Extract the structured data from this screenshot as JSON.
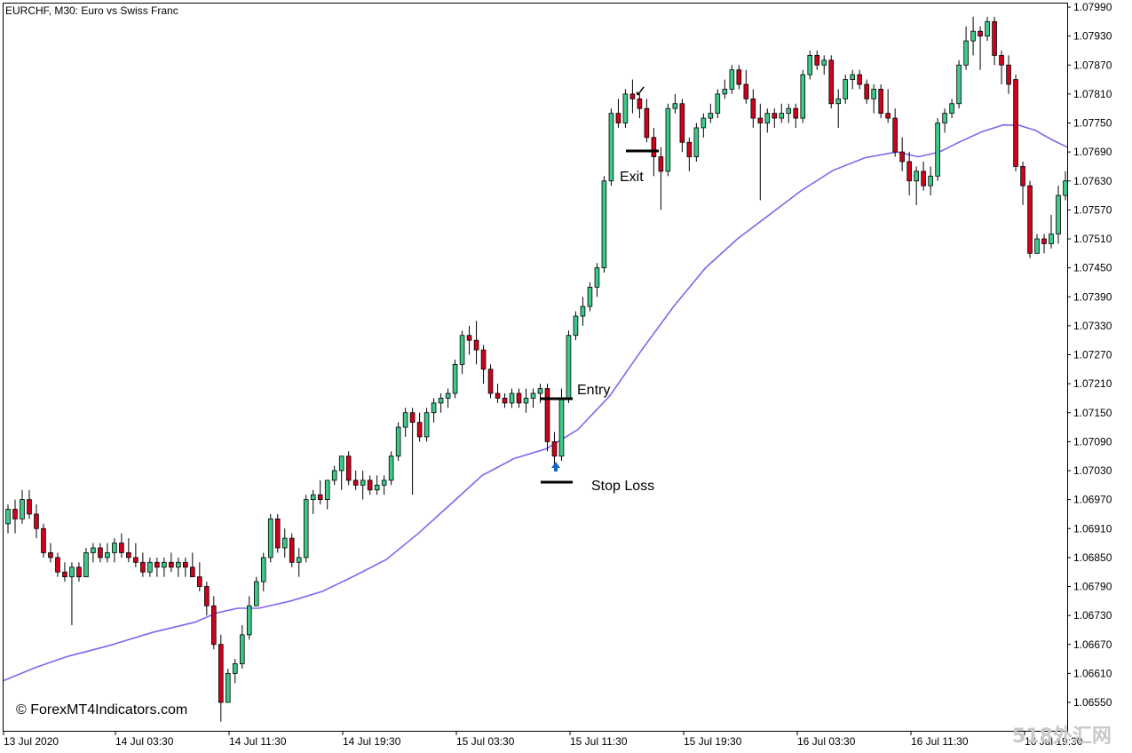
{
  "chart_data": {
    "type": "candlestick",
    "title": "EURCHF, M30:  Euro vs Swiss Franc",
    "ylim": [
      1.0649,
      1.0802
    ],
    "y_ticks": [
      "1.07990",
      "1.07930",
      "1.07870",
      "1.07810",
      "1.07750",
      "1.07690",
      "1.07630",
      "1.07570",
      "1.07510",
      "1.07450",
      "1.07390",
      "1.07330",
      "1.07270",
      "1.07210",
      "1.07150",
      "1.07090",
      "1.07030",
      "1.06970",
      "1.06910",
      "1.06850",
      "1.06790",
      "1.06730",
      "1.06670",
      "1.06610",
      "1.06550"
    ],
    "x_ticks": [
      "13 Jul 2020",
      "14 Jul 03:30",
      "14 Jul 11:30",
      "14 Jul 19:30",
      "15 Jul 03:30",
      "15 Jul 11:30",
      "15 Jul 19:30",
      "16 Jul 03:30",
      "16 Jul 11:30",
      "16 Jul 19:30"
    ],
    "grid": false,
    "bull_color": "#3ec98a",
    "bear_color": "#d0021b",
    "ma_color": "#7b68ee",
    "candles": [
      [
        1.0692,
        1.0696,
        1.069,
        1.0695
      ],
      [
        1.0695,
        1.0697,
        1.069,
        1.0693
      ],
      [
        1.0693,
        1.0699,
        1.0692,
        1.0697
      ],
      [
        1.0697,
        1.0699,
        1.0693,
        1.0694
      ],
      [
        1.0694,
        1.0696,
        1.0689,
        1.0691
      ],
      [
        1.0691,
        1.0692,
        1.0685,
        1.0686
      ],
      [
        1.0686,
        1.0688,
        1.0684,
        1.0685
      ],
      [
        1.0685,
        1.0686,
        1.0681,
        1.0682
      ],
      [
        1.0682,
        1.0684,
        1.068,
        1.0681
      ],
      [
        1.0681,
        1.0684,
        1.0671,
        1.0683
      ],
      [
        1.0683,
        1.0684,
        1.068,
        1.0681
      ],
      [
        1.0681,
        1.0687,
        1.0681,
        1.0686
      ],
      [
        1.0686,
        1.0688,
        1.0684,
        1.0687
      ],
      [
        1.0687,
        1.0688,
        1.0684,
        1.0685
      ],
      [
        1.0685,
        1.0688,
        1.0684,
        1.0686
      ],
      [
        1.0686,
        1.0689,
        1.0684,
        1.0688
      ],
      [
        1.0688,
        1.069,
        1.0685,
        1.0686
      ],
      [
        1.0686,
        1.0689,
        1.0684,
        1.0685
      ],
      [
        1.0685,
        1.0688,
        1.0683,
        1.0684
      ],
      [
        1.0684,
        1.0686,
        1.0681,
        1.0682
      ],
      [
        1.0682,
        1.0685,
        1.0681,
        1.0684
      ],
      [
        1.0684,
        1.0685,
        1.0681,
        1.0683
      ],
      [
        1.0683,
        1.0685,
        1.0681,
        1.0684
      ],
      [
        1.0684,
        1.0686,
        1.0682,
        1.0683
      ],
      [
        1.0683,
        1.0685,
        1.0681,
        1.0684
      ],
      [
        1.0684,
        1.0685,
        1.0681,
        1.0683
      ],
      [
        1.0683,
        1.0686,
        1.0681,
        1.0681
      ],
      [
        1.0681,
        1.0684,
        1.0678,
        1.0679
      ],
      [
        1.0679,
        1.068,
        1.0673,
        1.0675
      ],
      [
        1.0675,
        1.0677,
        1.0666,
        1.0667
      ],
      [
        1.0667,
        1.0669,
        1.0651,
        1.0655
      ],
      [
        1.0655,
        1.0662,
        1.0655,
        1.0661
      ],
      [
        1.0661,
        1.0664,
        1.0659,
        1.0663
      ],
      [
        1.0663,
        1.0671,
        1.0662,
        1.0669
      ],
      [
        1.0669,
        1.0677,
        1.0668,
        1.0675
      ],
      [
        1.0675,
        1.0681,
        1.0675,
        1.068
      ],
      [
        1.068,
        1.0686,
        1.0678,
        1.0685
      ],
      [
        1.0685,
        1.0694,
        1.0684,
        1.0693
      ],
      [
        1.0693,
        1.0694,
        1.0686,
        1.0687
      ],
      [
        1.0687,
        1.0691,
        1.0685,
        1.0689
      ],
      [
        1.0689,
        1.069,
        1.0683,
        1.0684
      ],
      [
        1.0684,
        1.0687,
        1.0681,
        1.0685
      ],
      [
        1.0685,
        1.0698,
        1.0684,
        1.0697
      ],
      [
        1.0697,
        1.0699,
        1.0694,
        1.0698
      ],
      [
        1.0698,
        1.0701,
        1.0696,
        1.0697
      ],
      [
        1.0697,
        1.0701,
        1.0695,
        1.0701
      ],
      [
        1.0701,
        1.0704,
        1.07,
        1.0703
      ],
      [
        1.0703,
        1.0706,
        1.0699,
        1.0706
      ],
      [
        1.0706,
        1.0707,
        1.07,
        1.0701
      ],
      [
        1.0701,
        1.0703,
        1.0699,
        1.07
      ],
      [
        1.07,
        1.0703,
        1.0697,
        1.0701
      ],
      [
        1.0701,
        1.0702,
        1.0698,
        1.0699
      ],
      [
        1.0699,
        1.0702,
        1.0698,
        1.07
      ],
      [
        1.07,
        1.0702,
        1.0698,
        1.0701
      ],
      [
        1.0701,
        1.0707,
        1.07,
        1.0706
      ],
      [
        1.0706,
        1.0713,
        1.0705,
        1.0712
      ],
      [
        1.0712,
        1.0716,
        1.071,
        1.0715
      ],
      [
        1.0715,
        1.0716,
        1.0698,
        1.0713
      ],
      [
        1.0713,
        1.0715,
        1.0709,
        1.071
      ],
      [
        1.071,
        1.0716,
        1.0709,
        1.0715
      ],
      [
        1.0715,
        1.0718,
        1.0713,
        1.0717
      ],
      [
        1.0717,
        1.0719,
        1.0715,
        1.0718
      ],
      [
        1.0718,
        1.072,
        1.0716,
        1.0719
      ],
      [
        1.0719,
        1.0726,
        1.0718,
        1.0725
      ],
      [
        1.0725,
        1.0732,
        1.0723,
        1.0731
      ],
      [
        1.0731,
        1.0733,
        1.0727,
        1.073
      ],
      [
        1.073,
        1.0734,
        1.0725,
        1.0728
      ],
      [
        1.0728,
        1.0729,
        1.0721,
        1.0724
      ],
      [
        1.0724,
        1.0725,
        1.0718,
        1.0719
      ],
      [
        1.0719,
        1.0721,
        1.0717,
        1.0718
      ],
      [
        1.0718,
        1.0719,
        1.0716,
        1.0717
      ],
      [
        1.0717,
        1.072,
        1.0716,
        1.0719
      ],
      [
        1.0719,
        1.072,
        1.0716,
        1.0717
      ],
      [
        1.0717,
        1.072,
        1.0715,
        1.0718
      ],
      [
        1.0718,
        1.072,
        1.0716,
        1.0719
      ],
      [
        1.0719,
        1.0721,
        1.0717,
        1.072
      ],
      [
        1.072,
        1.0721,
        1.0707,
        1.0709
      ],
      [
        1.0709,
        1.0711,
        1.0703,
        1.0706
      ],
      [
        1.0706,
        1.072,
        1.0705,
        1.0718
      ],
      [
        1.0718,
        1.0732,
        1.0717,
        1.0731
      ],
      [
        1.0731,
        1.0736,
        1.073,
        1.0735
      ],
      [
        1.0735,
        1.0739,
        1.0733,
        1.0737
      ],
      [
        1.0737,
        1.0742,
        1.0736,
        1.0741
      ],
      [
        1.0741,
        1.0746,
        1.0739,
        1.0745
      ],
      [
        1.0745,
        1.0764,
        1.0744,
        1.0763
      ],
      [
        1.0763,
        1.0778,
        1.0762,
        1.0777
      ],
      [
        1.0777,
        1.078,
        1.0774,
        1.0775
      ],
      [
        1.0775,
        1.0782,
        1.0774,
        1.0781
      ],
      [
        1.0781,
        1.0784,
        1.0777,
        1.078
      ],
      [
        1.078,
        1.0781,
        1.0776,
        1.0778
      ],
      [
        1.0778,
        1.078,
        1.0771,
        1.0772
      ],
      [
        1.0772,
        1.0774,
        1.0764,
        1.0768
      ],
      [
        1.0768,
        1.077,
        1.0757,
        1.0765
      ],
      [
        1.0765,
        1.0779,
        1.0764,
        1.0778
      ],
      [
        1.0778,
        1.0781,
        1.0777,
        1.0779
      ],
      [
        1.0779,
        1.078,
        1.0769,
        1.0771
      ],
      [
        1.0771,
        1.0772,
        1.0765,
        1.0768
      ],
      [
        1.0768,
        1.0775,
        1.0767,
        1.0774
      ],
      [
        1.0774,
        1.0777,
        1.0772,
        1.0776
      ],
      [
        1.0776,
        1.0779,
        1.0775,
        1.0777
      ],
      [
        1.0777,
        1.0782,
        1.0776,
        1.0781
      ],
      [
        1.0781,
        1.0784,
        1.078,
        1.0782
      ],
      [
        1.0782,
        1.0787,
        1.0781,
        1.0786
      ],
      [
        1.0786,
        1.0787,
        1.0782,
        1.0783
      ],
      [
        1.0783,
        1.0786,
        1.0779,
        1.078
      ],
      [
        1.078,
        1.0782,
        1.0774,
        1.0776
      ],
      [
        1.0776,
        1.0779,
        1.0759,
        1.0775
      ],
      [
        1.0775,
        1.0778,
        1.0773,
        1.0777
      ],
      [
        1.0777,
        1.0778,
        1.0774,
        1.0776
      ],
      [
        1.0776,
        1.0779,
        1.0775,
        1.0777
      ],
      [
        1.0777,
        1.0779,
        1.0775,
        1.0778
      ],
      [
        1.0778,
        1.0779,
        1.0774,
        1.0776
      ],
      [
        1.0776,
        1.0786,
        1.0775,
        1.0785
      ],
      [
        1.0785,
        1.079,
        1.0784,
        1.0789
      ],
      [
        1.0789,
        1.079,
        1.0786,
        1.0787
      ],
      [
        1.0787,
        1.0789,
        1.0785,
        1.0788
      ],
      [
        1.0788,
        1.0789,
        1.0778,
        1.0779
      ],
      [
        1.0779,
        1.0782,
        1.0774,
        1.078
      ],
      [
        1.078,
        1.0785,
        1.0779,
        1.0784
      ],
      [
        1.0784,
        1.0786,
        1.0782,
        1.0785
      ],
      [
        1.0785,
        1.0786,
        1.0782,
        1.0783
      ],
      [
        1.0783,
        1.0784,
        1.0779,
        1.078
      ],
      [
        1.078,
        1.0783,
        1.0777,
        1.0782
      ],
      [
        1.0782,
        1.0783,
        1.0776,
        1.0777
      ],
      [
        1.0777,
        1.0782,
        1.0775,
        1.0776
      ],
      [
        1.0776,
        1.0778,
        1.0768,
        1.0769
      ],
      [
        1.0769,
        1.0772,
        1.0765,
        1.0767
      ],
      [
        1.0767,
        1.0769,
        1.076,
        1.0763
      ],
      [
        1.0763,
        1.0766,
        1.0758,
        1.0765
      ],
      [
        1.0765,
        1.0767,
        1.0761,
        1.0762
      ],
      [
        1.0762,
        1.0766,
        1.076,
        1.0764
      ],
      [
        1.0764,
        1.0776,
        1.0763,
        1.0775
      ],
      [
        1.0775,
        1.0778,
        1.0773,
        1.0777
      ],
      [
        1.0777,
        1.078,
        1.0776,
        1.0779
      ],
      [
        1.0779,
        1.0788,
        1.0778,
        1.0787
      ],
      [
        1.0787,
        1.0795,
        1.0786,
        1.0792
      ],
      [
        1.0792,
        1.0797,
        1.0789,
        1.0794
      ],
      [
        1.0794,
        1.0795,
        1.0786,
        1.0793
      ],
      [
        1.0793,
        1.0797,
        1.0792,
        1.0796
      ],
      [
        1.0796,
        1.0797,
        1.0787,
        1.0789
      ],
      [
        1.0789,
        1.079,
        1.0783,
        1.0787
      ],
      [
        1.0787,
        1.0789,
        1.0781,
        1.0783
      ],
      [
        1.0784,
        1.0785,
        1.0765,
        1.0766
      ],
      [
        1.0766,
        1.0767,
        1.0758,
        1.0762
      ],
      [
        1.0762,
        1.0763,
        1.0747,
        1.0748
      ],
      [
        1.0748,
        1.0752,
        1.0748,
        1.0751
      ],
      [
        1.0751,
        1.0752,
        1.0748,
        1.075
      ],
      [
        1.075,
        1.0756,
        1.0749,
        1.0752
      ],
      [
        1.0752,
        1.0762,
        1.075,
        1.076
      ],
      [
        1.076,
        1.0765,
        1.0759,
        1.0763
      ]
    ],
    "ma": [
      [
        0,
        1.06595
      ],
      [
        0.03,
        1.06622
      ],
      [
        0.06,
        1.06645
      ],
      [
        0.1,
        1.06668
      ],
      [
        0.14,
        1.06695
      ],
      [
        0.18,
        1.06716
      ],
      [
        0.2,
        1.06735
      ],
      [
        0.22,
        1.06745
      ],
      [
        0.24,
        1.06745
      ],
      [
        0.27,
        1.0676
      ],
      [
        0.3,
        1.0678
      ],
      [
        0.33,
        1.06812
      ],
      [
        0.36,
        1.06846
      ],
      [
        0.39,
        1.069
      ],
      [
        0.42,
        1.0696
      ],
      [
        0.45,
        1.0702
      ],
      [
        0.48,
        1.07055
      ],
      [
        0.51,
        1.07075
      ],
      [
        0.54,
        1.07115
      ],
      [
        0.57,
        1.07185
      ],
      [
        0.6,
        1.0728
      ],
      [
        0.63,
        1.0737
      ],
      [
        0.66,
        1.0745
      ],
      [
        0.69,
        1.0751
      ],
      [
        0.72,
        1.0756
      ],
      [
        0.75,
        1.0761
      ],
      [
        0.78,
        1.07652
      ],
      [
        0.81,
        1.07678
      ],
      [
        0.84,
        1.0769
      ],
      [
        0.86,
        1.0768
      ],
      [
        0.88,
        1.0769
      ],
      [
        0.9,
        1.07712
      ],
      [
        0.92,
        1.07732
      ],
      [
        0.94,
        1.07746
      ],
      [
        0.955,
        1.07745
      ],
      [
        0.97,
        1.07735
      ],
      [
        0.985,
        1.07716
      ],
      [
        1.0,
        1.077
      ]
    ],
    "annotations": {
      "exit_label": "Exit",
      "entry_label": "Entry",
      "stop_loss_label": "Stop Loss",
      "check_mark": "✓"
    }
  },
  "watermark": "© ForexMT4Indicators.com",
  "watermark2": "518外汇网"
}
